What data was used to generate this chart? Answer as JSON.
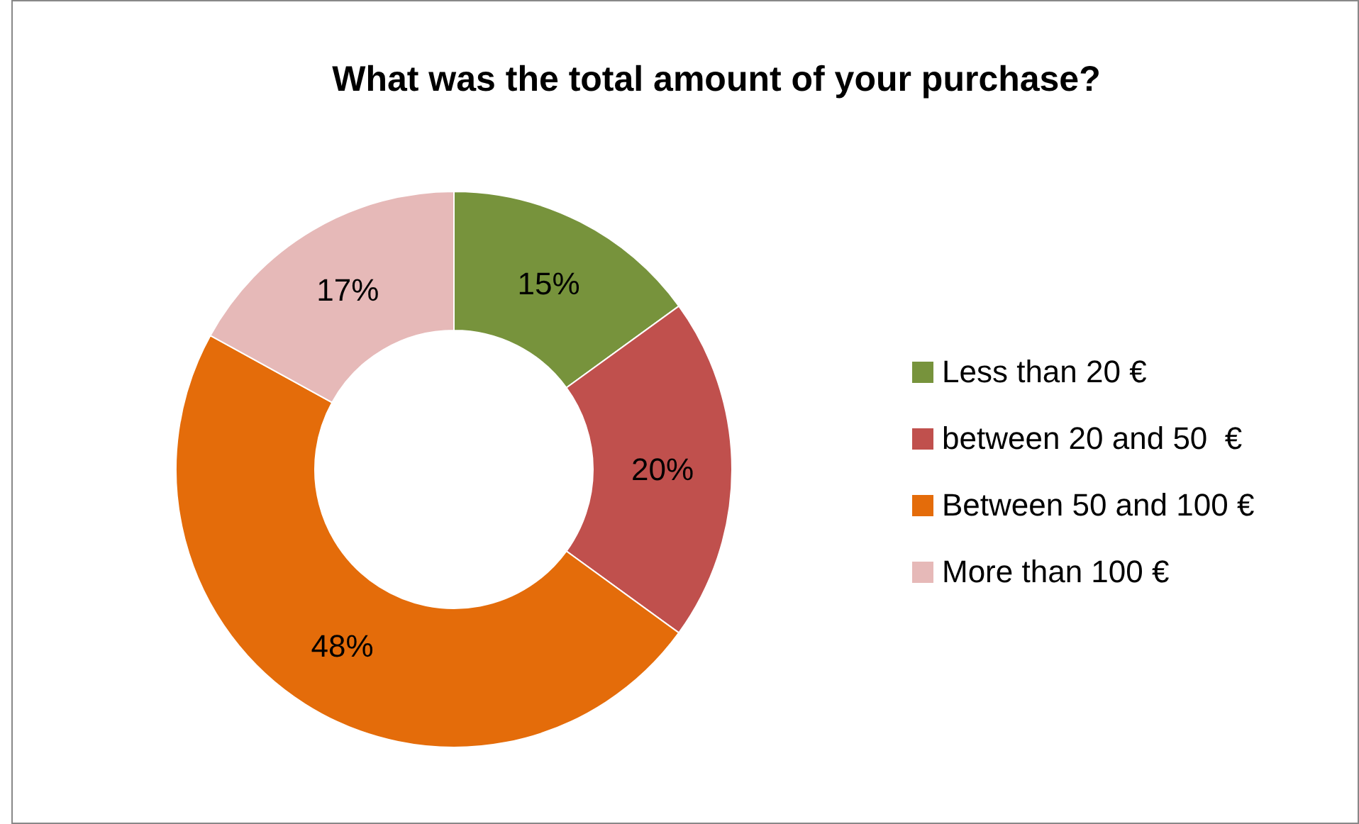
{
  "chart_data": {
    "type": "donut",
    "title": "What was the total amount of your purchase?",
    "categories": [
      "Less than 20 €",
      "between 20 and 50  €",
      "Between 50 and 100 €",
      "More than 100 €"
    ],
    "values": [
      15,
      20,
      48,
      17
    ],
    "colors": [
      "#77933c",
      "#c0504d",
      "#e46c0a",
      "#e6b9b8"
    ],
    "value_labels": [
      "15%",
      "20%",
      "48%",
      "17%"
    ],
    "legend": "right"
  }
}
